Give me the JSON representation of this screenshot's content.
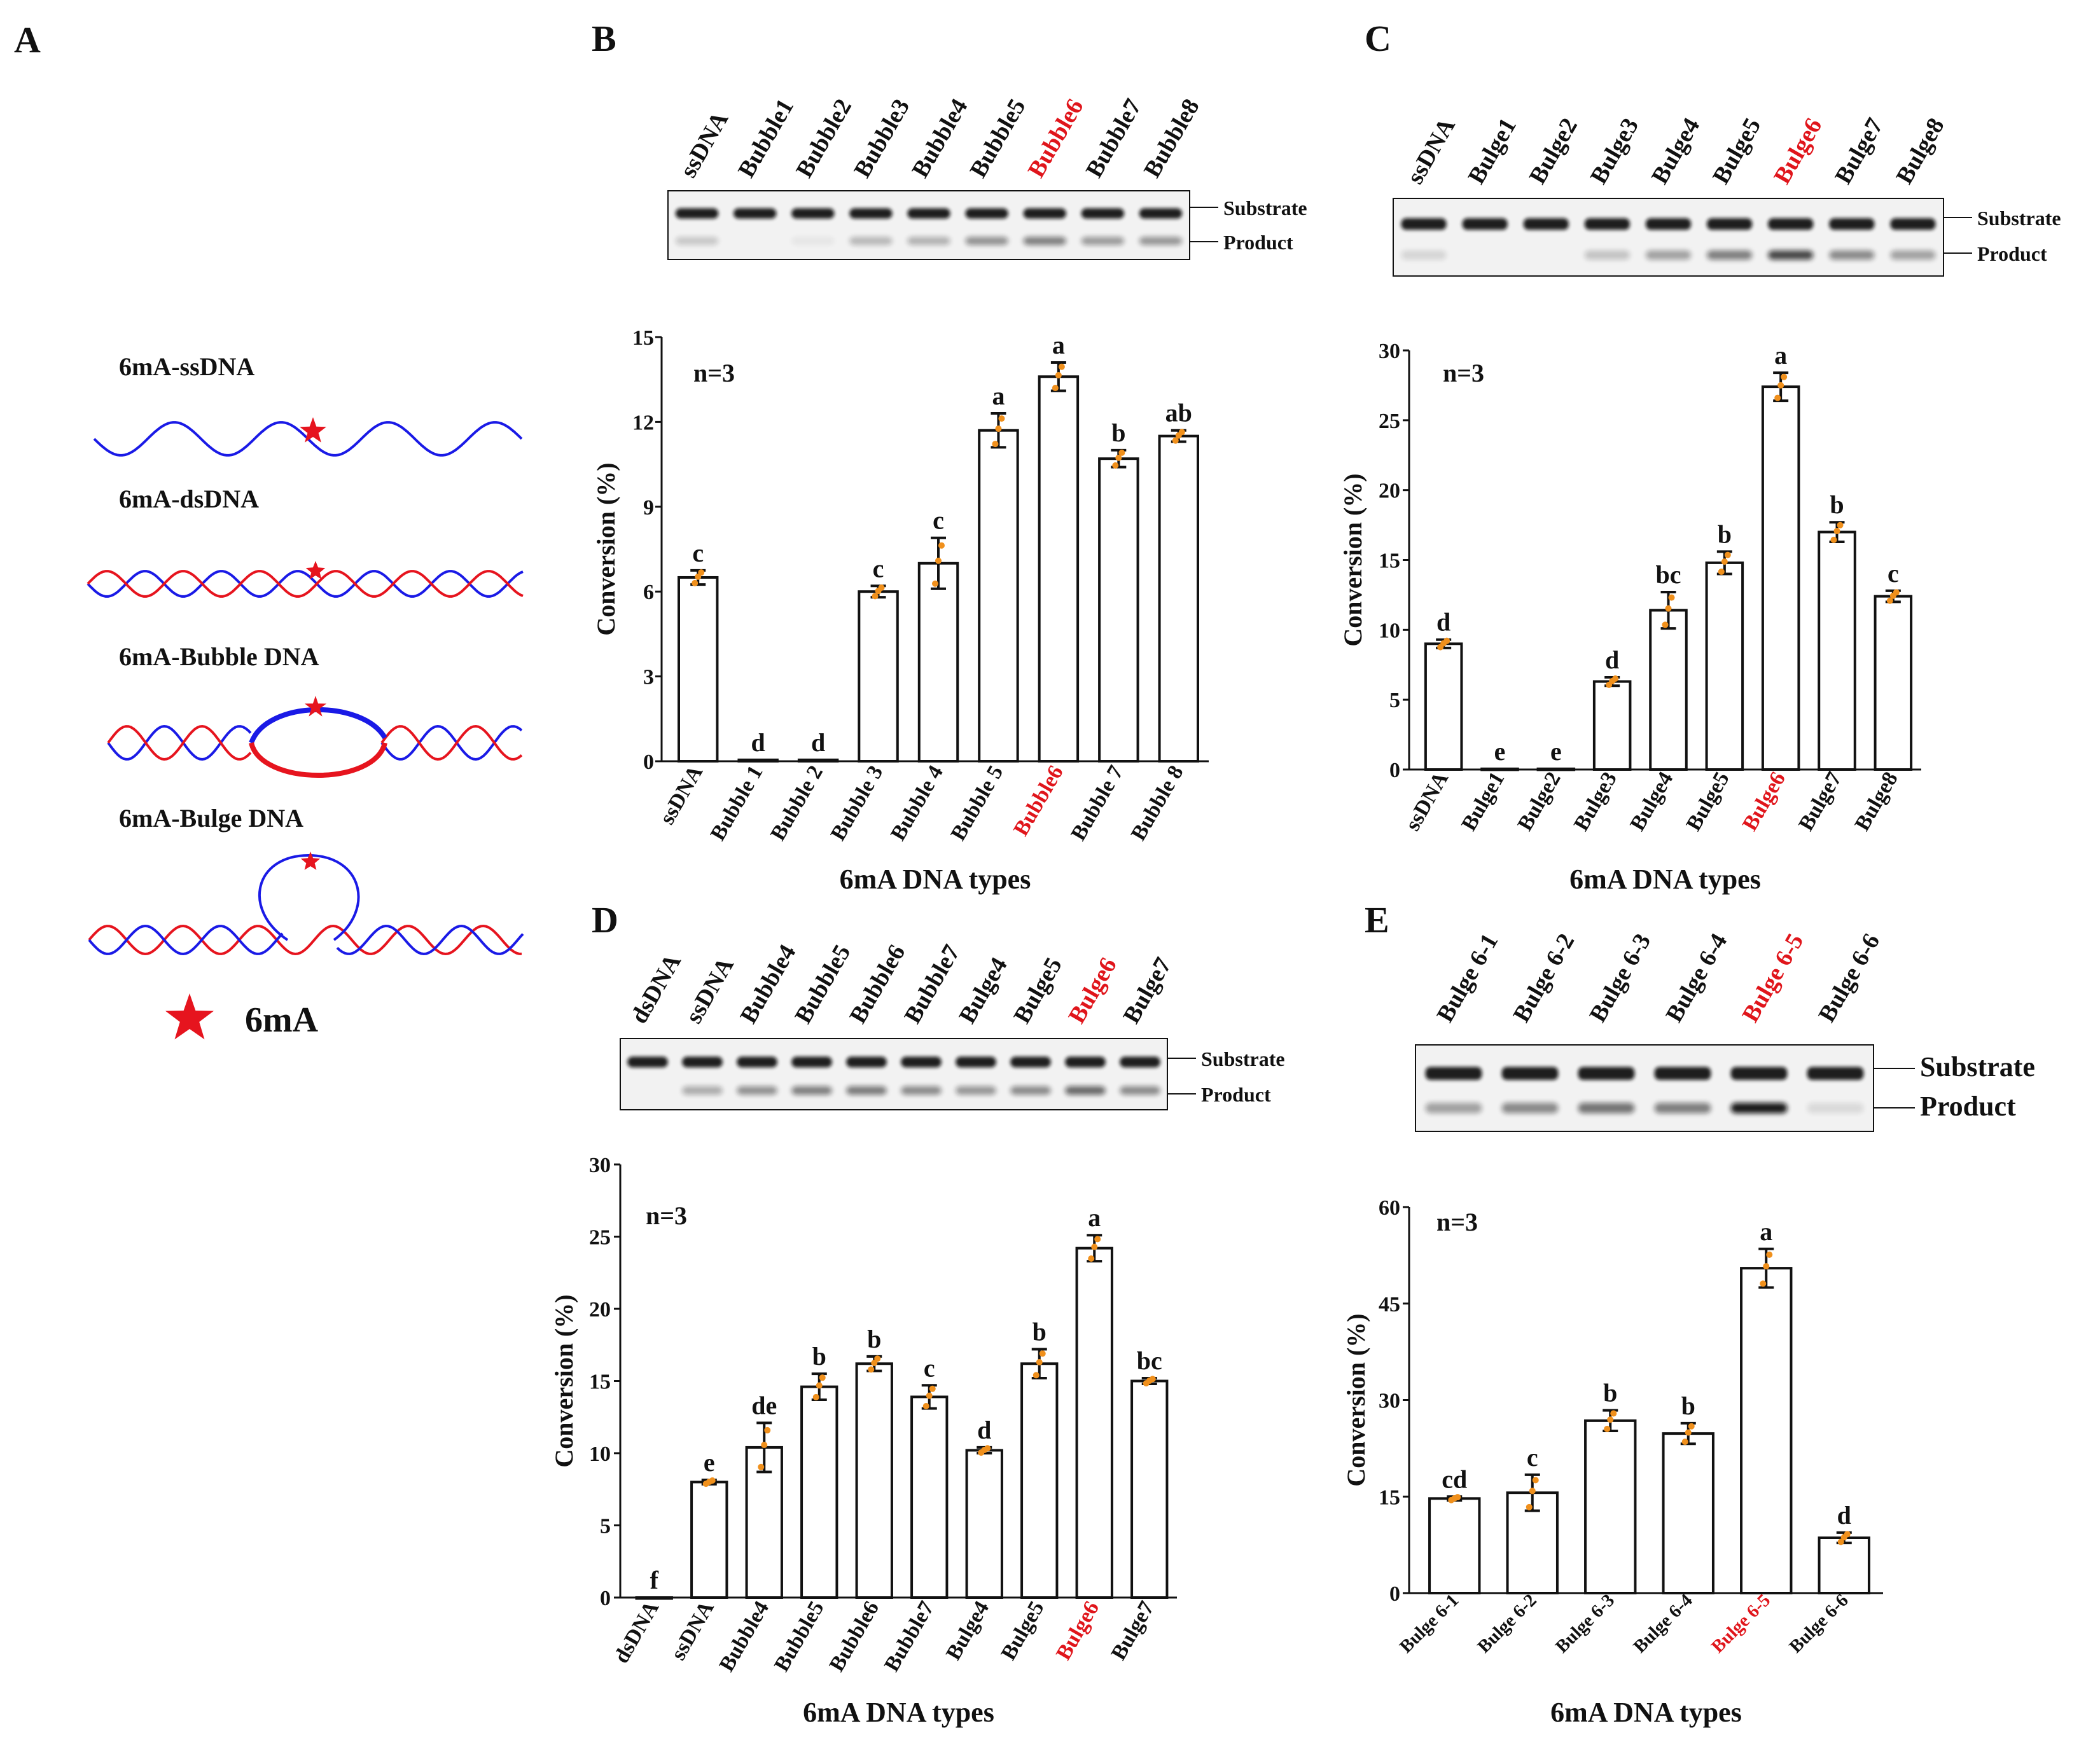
{
  "panel_letters": {
    "A": "A",
    "B": "B",
    "C": "C",
    "D": "D",
    "E": "E"
  },
  "schematic": {
    "labels": [
      "6mA-ssDNA",
      "6mA-dsDNA",
      "6mA-Bubble DNA",
      "6mA-Bulge DNA"
    ],
    "legend": "6mA",
    "colors": {
      "strand1": "#1a1ae6",
      "strand2": "#e6141e",
      "star": "#e6141e"
    }
  },
  "gel_side_labels": {
    "substrate": "Substrate",
    "product": "Product"
  },
  "chart_data": [
    {
      "id": "B",
      "type": "bar",
      "lanes": [
        "ssDNA",
        "Bubble1",
        "Bubble2",
        "Bubble3",
        "Bubble4",
        "Bubble5",
        "Bubble6",
        "Bubble7",
        "Bubble8"
      ],
      "lane_highlight": 6,
      "product_intensity": [
        0.18,
        0.0,
        0.05,
        0.25,
        0.28,
        0.42,
        0.5,
        0.38,
        0.4
      ],
      "categories": [
        "ssDNA",
        "Bubble 1",
        "Bubble 2",
        "Bubble 3",
        "Bubble 4",
        "Bubble 5",
        "Bubble6",
        "Bubble 7",
        "Bubble 8"
      ],
      "highlight": 6,
      "values": [
        6.5,
        0.05,
        0.05,
        6.0,
        7.0,
        11.7,
        13.6,
        10.7,
        11.5
      ],
      "errors": [
        0.25,
        0,
        0,
        0.2,
        0.9,
        0.6,
        0.5,
        0.3,
        0.2
      ],
      "letters": [
        "c",
        "d",
        "d",
        "c",
        "c",
        "a",
        "a",
        "b",
        "ab"
      ],
      "ylabel": "Conversion (%)",
      "xlabel": "6mA DNA types",
      "ylim": [
        0,
        15
      ],
      "yticks": [
        0,
        3,
        6,
        9,
        12,
        15
      ],
      "n_label": "n=3"
    },
    {
      "id": "C",
      "type": "bar",
      "lanes": [
        "ssDNA",
        "Bulge1",
        "Bulge2",
        "Bulge3",
        "Bulge4",
        "Bulge5",
        "Bulge6",
        "Bulge7",
        "Bulge8"
      ],
      "lane_highlight": 6,
      "product_intensity": [
        0.12,
        0.0,
        0.0,
        0.2,
        0.35,
        0.5,
        0.75,
        0.45,
        0.35
      ],
      "categories": [
        "ssDNA",
        "Bulge1",
        "Bulge2",
        "Bulge3",
        "Bulge4",
        "Bulge5",
        "Bulge6",
        "Bulge7",
        "Bulge8"
      ],
      "highlight": 6,
      "values": [
        9.0,
        0.05,
        0.05,
        6.3,
        11.4,
        14.8,
        27.4,
        17.0,
        12.4
      ],
      "errors": [
        0.3,
        0,
        0,
        0.3,
        1.3,
        0.8,
        1.0,
        0.7,
        0.4
      ],
      "letters": [
        "d",
        "e",
        "e",
        "d",
        "bc",
        "b",
        "a",
        "b",
        "c"
      ],
      "ylabel": "Conversion (%)",
      "xlabel": "6mA DNA types",
      "ylim": [
        0,
        30
      ],
      "yticks": [
        0,
        5,
        10,
        15,
        20,
        25,
        30
      ],
      "n_label": "n=3"
    },
    {
      "id": "D",
      "type": "bar",
      "lanes": [
        "dsDNA",
        "ssDNA",
        "Bubble4",
        "Bubble5",
        "Bubble6",
        "Bubble7",
        "Bulge4",
        "Bulge5",
        "Bulge6",
        "Bulge7"
      ],
      "lane_highlight": 8,
      "product_intensity": [
        0.0,
        0.3,
        0.42,
        0.5,
        0.52,
        0.45,
        0.4,
        0.45,
        0.6,
        0.45
      ],
      "categories": [
        "dsDNA",
        "ssDNA",
        "Bubble4",
        "Bubble5",
        "Bubble6",
        "Bubble7",
        "Bulge4",
        "Bulge5",
        "Bulge6",
        "Bulge7"
      ],
      "highlight": 8,
      "values": [
        0.0,
        8.0,
        10.4,
        14.6,
        16.2,
        13.9,
        10.2,
        16.2,
        24.2,
        15.0
      ],
      "errors": [
        0,
        0.15,
        1.7,
        0.9,
        0.5,
        0.8,
        0.2,
        1.0,
        0.9,
        0.2
      ],
      "letters": [
        "f",
        "e",
        "de",
        "b",
        "b",
        "c",
        "d",
        "b",
        "a",
        "bc"
      ],
      "ylabel": "Conversion (%)",
      "xlabel": "6mA DNA types",
      "ylim": [
        0,
        30
      ],
      "yticks": [
        0,
        5,
        10,
        15,
        20,
        25,
        30
      ],
      "n_label": "n=3"
    },
    {
      "id": "E",
      "type": "bar",
      "lanes": [
        "Bulge 6-1",
        "Bulge 6-2",
        "Bulge 6-3",
        "Bulge 6-4",
        "Bulge 6-5",
        "Bulge 6-6"
      ],
      "lane_highlight": 4,
      "product_intensity": [
        0.35,
        0.45,
        0.55,
        0.5,
        0.95,
        0.1
      ],
      "categories": [
        "Bulge 6-1",
        "Bulge 6-2",
        "Bulge 6-3",
        "Bulge 6-4",
        "Bulge 6-5",
        "Bulge 6-6"
      ],
      "highlight": 4,
      "values": [
        14.7,
        15.6,
        26.8,
        24.8,
        50.5,
        8.6
      ],
      "errors": [
        0.3,
        2.8,
        1.6,
        1.6,
        3.0,
        0.8
      ],
      "letters": [
        "cd",
        "c",
        "b",
        "b",
        "a",
        "d"
      ],
      "ylabel": "Conversion (%)",
      "xlabel": "6mA DNA types",
      "ylim": [
        0,
        60
      ],
      "yticks": [
        0,
        15,
        30,
        45,
        60
      ],
      "n_label": "n=3"
    }
  ]
}
